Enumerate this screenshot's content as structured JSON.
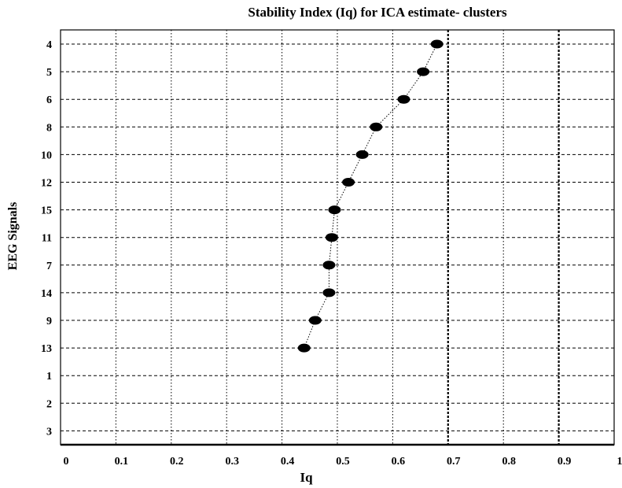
{
  "chart_data": {
    "type": "scatter",
    "title": "Stability Index (Iq) for ICA estimate- clusters",
    "xlabel": "Iq",
    "ylabel": "EEG Signals",
    "xlim": [
      0,
      1
    ],
    "x_ticks": [
      "0",
      "0.1",
      "0.2",
      "0.3",
      "0.4",
      "0.5",
      "0.6",
      "0.7",
      "0.8",
      "0.9",
      "1"
    ],
    "categories": [
      "4",
      "5",
      "6",
      "8",
      "10",
      "12",
      "15",
      "11",
      "7",
      "14",
      "9",
      "13",
      "1",
      "2",
      "3"
    ],
    "series": [
      {
        "points": [
          {
            "category": "4",
            "x": 0.68
          },
          {
            "category": "5",
            "x": 0.655
          },
          {
            "category": "6",
            "x": 0.62
          },
          {
            "category": "8",
            "x": 0.57
          },
          {
            "category": "10",
            "x": 0.545
          },
          {
            "category": "12",
            "x": 0.52
          },
          {
            "category": "15",
            "x": 0.495
          },
          {
            "category": "11",
            "x": 0.49
          },
          {
            "category": "7",
            "x": 0.485
          },
          {
            "category": "14",
            "x": 0.485
          },
          {
            "category": "9",
            "x": 0.46
          },
          {
            "category": "13",
            "x": 0.44
          }
        ]
      }
    ],
    "grid": true,
    "marker_color": "#000000",
    "line_style": "dotted"
  }
}
